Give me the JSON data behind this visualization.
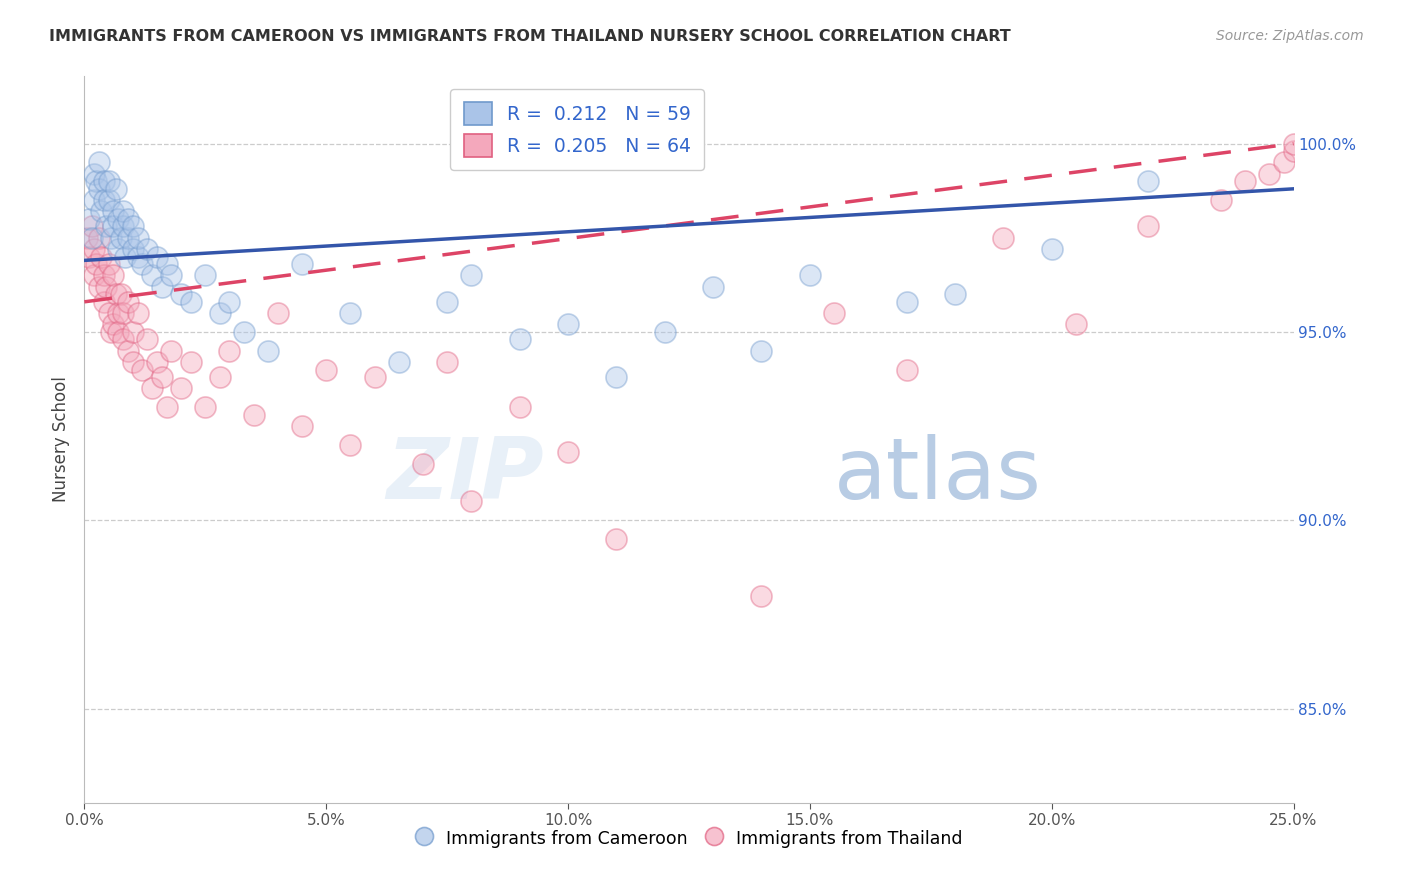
{
  "title": "IMMIGRANTS FROM CAMEROON VS IMMIGRANTS FROM THAILAND NURSERY SCHOOL CORRELATION CHART",
  "source": "Source: ZipAtlas.com",
  "ylabel": "Nursery School",
  "right_yticks": [
    85.0,
    90.0,
    95.0,
    100.0
  ],
  "xlim": [
    0.0,
    25.0
  ],
  "ylim": [
    82.5,
    101.8
  ],
  "cameroon_R": 0.212,
  "cameroon_N": 59,
  "thailand_R": 0.205,
  "thailand_N": 64,
  "color_cameroon_fill": "#aac4e8",
  "color_cameroon_edge": "#7099cc",
  "color_thailand_fill": "#f4a8bc",
  "color_thailand_edge": "#e06080",
  "color_trend_cameroon": "#3355aa",
  "color_trend_thailand": "#dd4466",
  "trend_cam_x0": 0.0,
  "trend_cam_y0": 96.9,
  "trend_cam_x1": 25.0,
  "trend_cam_y1": 98.8,
  "trend_thai_x0": 0.0,
  "trend_thai_y0": 95.8,
  "trend_thai_x1": 25.0,
  "trend_thai_y1": 100.0,
  "cameroon_x": [
    0.1,
    0.15,
    0.2,
    0.2,
    0.25,
    0.3,
    0.3,
    0.35,
    0.4,
    0.4,
    0.45,
    0.5,
    0.5,
    0.55,
    0.6,
    0.6,
    0.65,
    0.7,
    0.7,
    0.75,
    0.8,
    0.8,
    0.85,
    0.9,
    0.9,
    1.0,
    1.0,
    1.1,
    1.1,
    1.2,
    1.3,
    1.4,
    1.5,
    1.6,
    1.7,
    1.8,
    2.0,
    2.2,
    2.5,
    2.8,
    3.0,
    3.3,
    3.8,
    4.5,
    5.5,
    6.5,
    7.5,
    8.0,
    9.0,
    10.0,
    11.0,
    12.0,
    13.0,
    14.0,
    15.0,
    17.0,
    18.0,
    20.0,
    22.0
  ],
  "cameroon_y": [
    98.0,
    97.5,
    98.5,
    99.2,
    99.0,
    98.8,
    99.5,
    98.2,
    99.0,
    98.5,
    97.8,
    98.5,
    99.0,
    97.5,
    98.2,
    97.8,
    98.8,
    97.2,
    98.0,
    97.5,
    97.8,
    98.2,
    97.0,
    97.5,
    98.0,
    97.2,
    97.8,
    97.0,
    97.5,
    96.8,
    97.2,
    96.5,
    97.0,
    96.2,
    96.8,
    96.5,
    96.0,
    95.8,
    96.5,
    95.5,
    95.8,
    95.0,
    94.5,
    96.8,
    95.5,
    94.2,
    95.8,
    96.5,
    94.8,
    95.2,
    93.8,
    95.0,
    96.2,
    94.5,
    96.5,
    95.8,
    96.0,
    97.2,
    99.0
  ],
  "thailand_x": [
    0.05,
    0.1,
    0.15,
    0.2,
    0.2,
    0.25,
    0.3,
    0.3,
    0.35,
    0.4,
    0.4,
    0.45,
    0.5,
    0.5,
    0.55,
    0.6,
    0.6,
    0.65,
    0.7,
    0.7,
    0.75,
    0.8,
    0.8,
    0.9,
    0.9,
    1.0,
    1.0,
    1.1,
    1.2,
    1.3,
    1.4,
    1.5,
    1.6,
    1.7,
    1.8,
    2.0,
    2.2,
    2.5,
    2.8,
    3.0,
    3.5,
    4.0,
    4.5,
    5.0,
    5.5,
    6.0,
    7.0,
    7.5,
    8.0,
    9.0,
    10.0,
    11.0,
    14.0,
    15.5,
    17.0,
    19.0,
    20.5,
    22.0,
    23.5,
    24.0,
    24.5,
    24.8,
    25.0,
    25.0
  ],
  "thailand_y": [
    97.5,
    97.0,
    97.8,
    96.5,
    97.2,
    96.8,
    97.5,
    96.2,
    97.0,
    96.5,
    95.8,
    96.2,
    95.5,
    96.8,
    95.0,
    96.5,
    95.2,
    96.0,
    95.5,
    95.0,
    96.0,
    94.8,
    95.5,
    94.5,
    95.8,
    95.0,
    94.2,
    95.5,
    94.0,
    94.8,
    93.5,
    94.2,
    93.8,
    93.0,
    94.5,
    93.5,
    94.2,
    93.0,
    93.8,
    94.5,
    92.8,
    95.5,
    92.5,
    94.0,
    92.0,
    93.8,
    91.5,
    94.2,
    90.5,
    93.0,
    91.8,
    89.5,
    88.0,
    95.5,
    94.0,
    97.5,
    95.2,
    97.8,
    98.5,
    99.0,
    99.2,
    99.5,
    99.8,
    100.0
  ],
  "watermark_zip": "ZIP",
  "watermark_atlas": "atlas",
  "xtick_positions": [
    0,
    5,
    10,
    15,
    20,
    25
  ],
  "xtick_labels": [
    "0.0%",
    "5.0%",
    "10.0%",
    "15.0%",
    "20.0%",
    "25.0%"
  ]
}
